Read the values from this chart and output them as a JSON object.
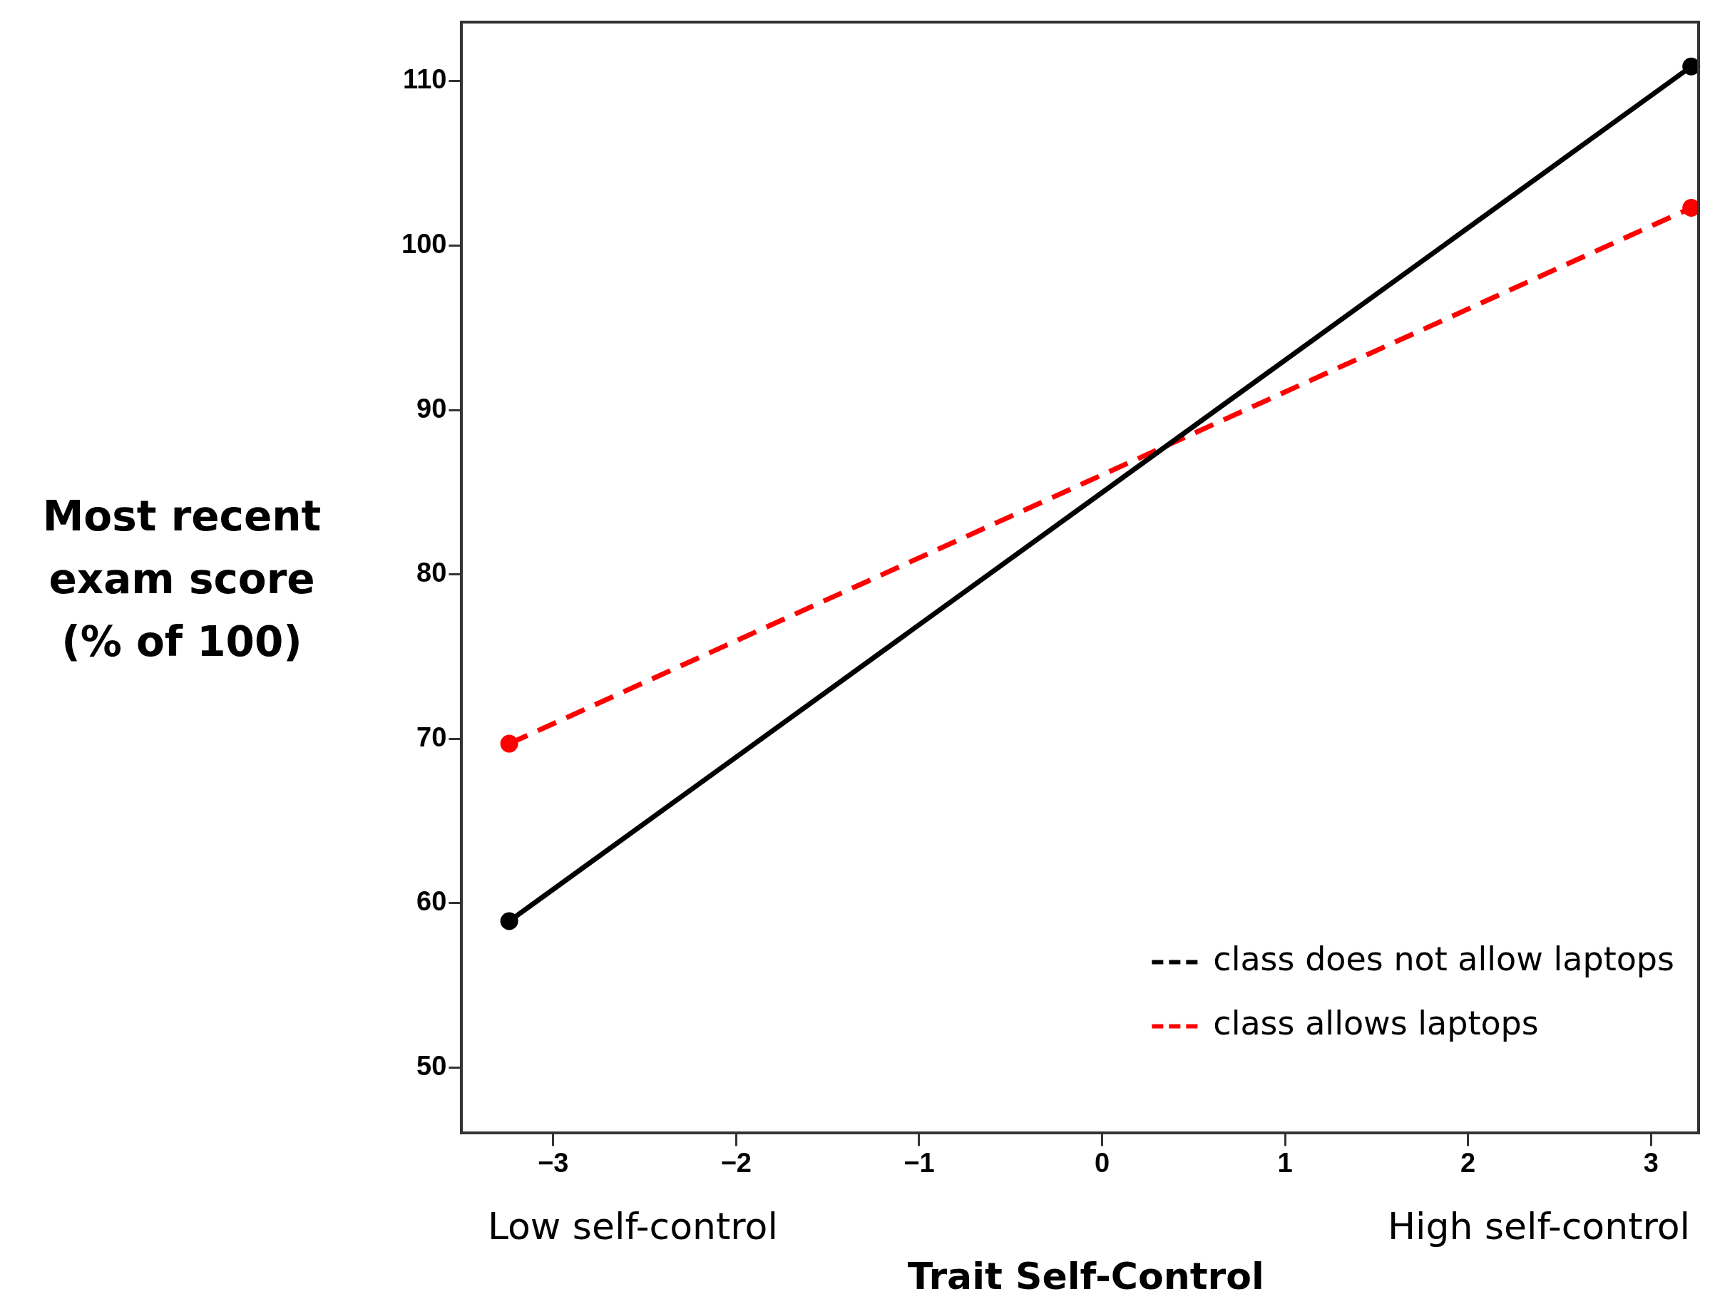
{
  "chart_data": {
    "type": "line",
    "ylabel": "Most recent exam score (% of 100)",
    "xlabel": "Trait Self-Control",
    "annotations": [
      "Low self-control",
      "High self-control"
    ],
    "xlim": [
      -3.5,
      3.26
    ],
    "xticks": [
      {
        "value": -3,
        "label": "−3"
      },
      {
        "value": -2,
        "label": "−2"
      },
      {
        "value": -1,
        "label": "−1"
      },
      0,
      1,
      2,
      3
    ],
    "ylim": [
      46,
      113.6
    ],
    "yticks": [
      50,
      60,
      70,
      80,
      90,
      100,
      110
    ],
    "x": [
      -3.24,
      3.22
    ],
    "series": [
      {
        "name": "class does not allow laptops",
        "color": "#000000",
        "values": [
          58.9,
          110.9
        ],
        "line_style": "solid"
      },
      {
        "name": "class allows laptops",
        "color": "#ff0000",
        "values": [
          69.7,
          102.3
        ],
        "line_style": "dashed"
      }
    ],
    "marker": "circle",
    "legend": "bottom right",
    "grid": false
  }
}
